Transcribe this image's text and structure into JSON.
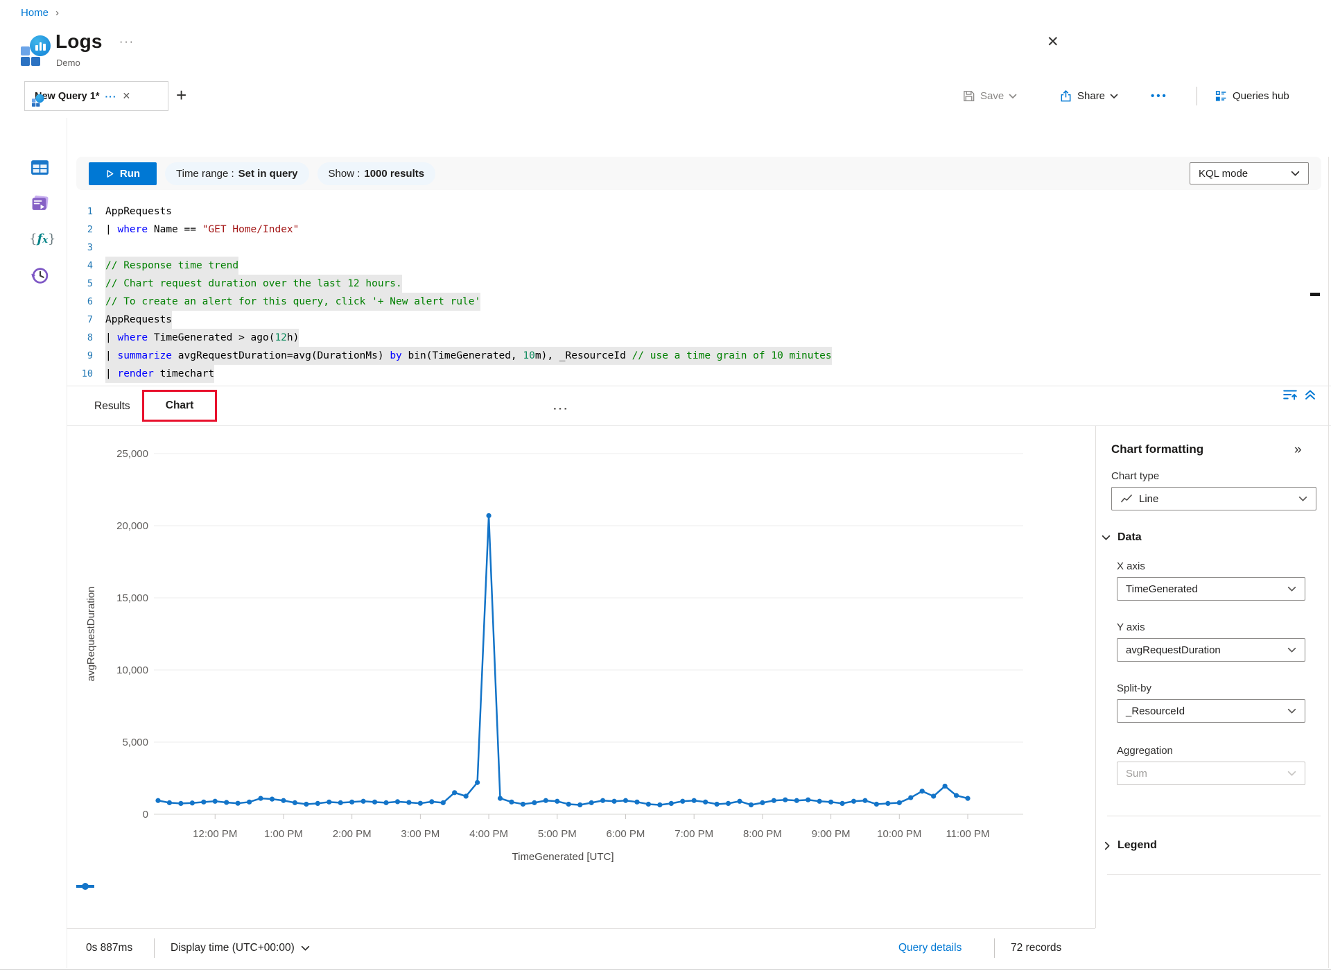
{
  "breadcrumb": {
    "home": "Home"
  },
  "header": {
    "title": "Logs",
    "subtitle": "Demo"
  },
  "tabs": {
    "active_tab": "New Query 1*"
  },
  "actions": {
    "save": "Save",
    "share": "Share",
    "queries_hub": "Queries hub"
  },
  "toolbar": {
    "run": "Run",
    "time_range_label": "Time range :",
    "time_range_value": "Set in query",
    "show_label": "Show :",
    "show_value": "1000 results",
    "kql_mode": "KQL mode"
  },
  "icons": {
    "breadcrumb_chevron": "›",
    "close": "✕",
    "title_more": "···",
    "tab_more": "···",
    "tab_close": "✕",
    "plus": "+",
    "actions_more": "•••",
    "handle": "···",
    "panel_collapse": "»"
  },
  "editor": {
    "lines": [
      {
        "n": "1",
        "hl": false,
        "tokens": [
          {
            "t": "AppRequests",
            "c": "pl"
          }
        ]
      },
      {
        "n": "2",
        "hl": false,
        "tokens": [
          {
            "t": "| ",
            "c": "pl"
          },
          {
            "t": "where",
            "c": "kw"
          },
          {
            "t": " Name == ",
            "c": "pl"
          },
          {
            "t": "\"GET Home/Index\"",
            "c": "str"
          }
        ]
      },
      {
        "n": "3",
        "hl": false,
        "tokens": []
      },
      {
        "n": "4",
        "hl": true,
        "tokens": [
          {
            "t": "// Response time trend",
            "c": "com"
          }
        ]
      },
      {
        "n": "5",
        "hl": true,
        "tokens": [
          {
            "t": "// Chart request duration over the last 12 hours.",
            "c": "com"
          }
        ]
      },
      {
        "n": "6",
        "hl": true,
        "tokens": [
          {
            "t": "// To create an alert for this query, click '+ New alert rule'",
            "c": "com"
          }
        ]
      },
      {
        "n": "7",
        "hl": true,
        "tokens": [
          {
            "t": "AppRequests",
            "c": "pl"
          }
        ]
      },
      {
        "n": "8",
        "hl": true,
        "tokens": [
          {
            "t": "| ",
            "c": "pl"
          },
          {
            "t": "where",
            "c": "kw"
          },
          {
            "t": " TimeGenerated > ago(",
            "c": "pl"
          },
          {
            "t": "12",
            "c": "num"
          },
          {
            "t": "h)",
            "c": "pl"
          }
        ]
      },
      {
        "n": "9",
        "hl": true,
        "tokens": [
          {
            "t": "| ",
            "c": "pl"
          },
          {
            "t": "summarize",
            "c": "kw"
          },
          {
            "t": " avgRequestDuration=avg(DurationMs) ",
            "c": "pl"
          },
          {
            "t": "by",
            "c": "kw"
          },
          {
            "t": " bin(TimeGenerated, ",
            "c": "pl"
          },
          {
            "t": "10",
            "c": "num"
          },
          {
            "t": "m), _ResourceId ",
            "c": "pl"
          },
          {
            "t": "// use a time grain of 10 minutes",
            "c": "com"
          }
        ]
      },
      {
        "n": "10",
        "hl": true,
        "tokens": [
          {
            "t": "| ",
            "c": "pl"
          },
          {
            "t": "render",
            "c": "kw"
          },
          {
            "t": " timechart",
            "c": "pl"
          }
        ]
      }
    ]
  },
  "results": {
    "tab_results": "Results",
    "tab_chart": "Chart"
  },
  "chart_data": {
    "type": "line",
    "title": "",
    "xlabel": "TimeGenerated [UTC]",
    "ylabel": "avgRequestDuration",
    "ylim": [
      0,
      25000
    ],
    "y_ticks": [
      0,
      5000,
      10000,
      15000,
      20000,
      25000
    ],
    "x_tick_labels": [
      "12:00 PM",
      "1:00 PM",
      "2:00 PM",
      "3:00 PM",
      "4:00 PM",
      "5:00 PM",
      "6:00 PM",
      "7:00 PM",
      "8:00 PM",
      "9:00 PM",
      "10:00 PM",
      "11:00 PM"
    ],
    "grid": true,
    "legend_position": "bottom-left",
    "series": [
      {
        "name": "_ResourceId",
        "color": "#1374c8",
        "x": [
          "11:10 AM",
          "11:20 AM",
          "11:30 AM",
          "11:40 AM",
          "11:50 AM",
          "12:00 PM",
          "12:10 PM",
          "12:20 PM",
          "12:30 PM",
          "12:40 PM",
          "12:50 PM",
          "1:00 PM",
          "1:10 PM",
          "1:20 PM",
          "1:30 PM",
          "1:40 PM",
          "1:50 PM",
          "2:00 PM",
          "2:10 PM",
          "2:20 PM",
          "2:30 PM",
          "2:40 PM",
          "2:50 PM",
          "3:00 PM",
          "3:10 PM",
          "3:20 PM",
          "3:30 PM",
          "3:40 PM",
          "3:50 PM",
          "4:00 PM",
          "4:10 PM",
          "4:20 PM",
          "4:30 PM",
          "4:40 PM",
          "4:50 PM",
          "5:00 PM",
          "5:10 PM",
          "5:20 PM",
          "5:30 PM",
          "5:40 PM",
          "5:50 PM",
          "6:00 PM",
          "6:10 PM",
          "6:20 PM",
          "6:30 PM",
          "6:40 PM",
          "6:50 PM",
          "7:00 PM",
          "7:10 PM",
          "7:20 PM",
          "7:30 PM",
          "7:40 PM",
          "7:50 PM",
          "8:00 PM",
          "8:10 PM",
          "8:20 PM",
          "8:30 PM",
          "8:40 PM",
          "8:50 PM",
          "9:00 PM",
          "9:10 PM",
          "9:20 PM",
          "9:30 PM",
          "9:40 PM",
          "9:50 PM",
          "10:00 PM",
          "10:10 PM",
          "10:20 PM",
          "10:30 PM",
          "10:40 PM",
          "10:50 PM",
          "11:00 PM"
        ],
        "values": [
          950,
          800,
          750,
          780,
          850,
          900,
          820,
          760,
          850,
          1100,
          1050,
          950,
          800,
          700,
          750,
          850,
          800,
          850,
          900,
          850,
          800,
          870,
          820,
          760,
          870,
          800,
          1500,
          1250,
          2200,
          20700,
          1100,
          850,
          700,
          800,
          950,
          900,
          700,
          650,
          800,
          950,
          900,
          950,
          850,
          700,
          650,
          750,
          900,
          950,
          850,
          700,
          750,
          900,
          650,
          800,
          950,
          1000,
          950,
          1000,
          900,
          850,
          750,
          900,
          950,
          700,
          750,
          800,
          1150,
          1600,
          1250,
          1950,
          1300,
          1100
        ]
      }
    ]
  },
  "formatting": {
    "title": "Chart formatting",
    "chart_type_label": "Chart type",
    "chart_type_value": "Line",
    "data_section": "Data",
    "x_axis_label": "X axis",
    "x_axis_value": "TimeGenerated",
    "y_axis_label": "Y axis",
    "y_axis_value": "avgRequestDuration",
    "split_by_label": "Split-by",
    "split_by_value": "_ResourceId",
    "aggregation_label": "Aggregation",
    "aggregation_value": "Sum",
    "legend_section": "Legend"
  },
  "statusbar": {
    "duration": "0s 887ms",
    "display_time": "Display time (UTC+00:00)",
    "query_details": "Query details",
    "records": "72 records"
  },
  "colors": {
    "accent": "#0078d4",
    "series_line": "#1374c8",
    "annotation_red": "#e8112d"
  }
}
